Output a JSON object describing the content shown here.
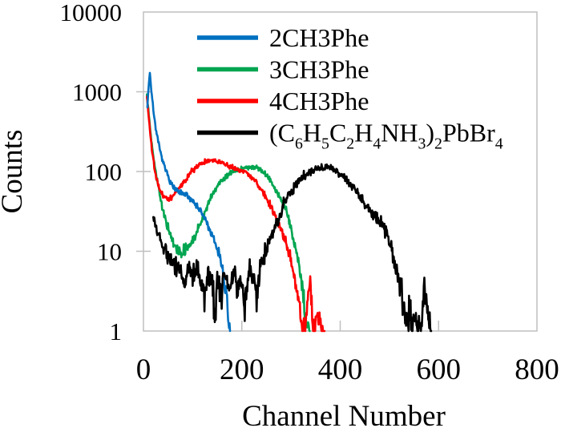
{
  "figure": {
    "background": "#FFFFFF",
    "frame_color": "#BFBFBF",
    "text_color": "#000000"
  },
  "chart_data": {
    "type": "line",
    "title": "",
    "xlabel": "Channel Number",
    "ylabel": "Counts",
    "x_axis": {
      "min": 0,
      "max": 800,
      "ticks": [
        0,
        200,
        400,
        600,
        800
      ]
    },
    "y_axis": {
      "scale": "log",
      "min": 1,
      "max": 10000,
      "ticks": [
        1,
        10,
        100,
        1000,
        10000
      ]
    },
    "grid": false,
    "legend_position": "top-center-inside",
    "series": [
      {
        "name": "3CH3Phe",
        "legend_order": 1,
        "label_segments": [
          {
            "t": "3CH3Phe"
          }
        ],
        "color": "#00A550",
        "seed": 13,
        "noise_base": 0.022,
        "noise_lowc": 0.25,
        "anchors": [
          [
            7,
            950
          ],
          [
            10,
            600
          ],
          [
            14,
            330
          ],
          [
            18,
            200
          ],
          [
            23,
            120
          ],
          [
            28,
            76
          ],
          [
            33,
            52
          ],
          [
            38,
            36
          ],
          [
            44,
            26
          ],
          [
            50,
            19
          ],
          [
            56,
            15
          ],
          [
            62,
            12
          ],
          [
            68,
            10.5
          ],
          [
            75,
            9.5
          ],
          [
            82,
            10
          ],
          [
            90,
            11
          ],
          [
            98,
            13
          ],
          [
            106,
            16
          ],
          [
            114,
            21
          ],
          [
            122,
            28
          ],
          [
            130,
            37
          ],
          [
            138,
            48
          ],
          [
            146,
            60
          ],
          [
            155,
            72
          ],
          [
            165,
            85
          ],
          [
            175,
            95
          ],
          [
            185,
            101
          ],
          [
            195,
            106
          ],
          [
            205,
            110
          ],
          [
            215,
            112
          ],
          [
            225,
            112
          ],
          [
            235,
            108
          ],
          [
            245,
            98
          ],
          [
            255,
            82
          ],
          [
            263,
            68
          ],
          [
            271,
            55
          ],
          [
            279,
            45
          ],
          [
            287,
            38
          ],
          [
            295,
            26
          ],
          [
            302,
            17
          ],
          [
            309,
            11
          ],
          [
            316,
            6.5
          ],
          [
            322,
            3.8
          ],
          [
            327,
            2.2
          ],
          [
            332,
            1.3
          ],
          [
            338,
            1
          ]
        ]
      },
      {
        "name": "4CH3Phe",
        "legend_order": 2,
        "label_segments": [
          {
            "t": "4CH3Phe"
          }
        ],
        "color": "#FF0000",
        "seed": 21,
        "noise_base": 0.022,
        "noise_lowc": 0.25,
        "anchors": [
          [
            7,
            880
          ],
          [
            10,
            540
          ],
          [
            14,
            290
          ],
          [
            18,
            170
          ],
          [
            23,
            105
          ],
          [
            28,
            76
          ],
          [
            33,
            60
          ],
          [
            38,
            52
          ],
          [
            44,
            47
          ],
          [
            50,
            45
          ],
          [
            56,
            46
          ],
          [
            62,
            50
          ],
          [
            68,
            56
          ],
          [
            75,
            64
          ],
          [
            82,
            74
          ],
          [
            90,
            87
          ],
          [
            98,
            100
          ],
          [
            106,
            113
          ],
          [
            114,
            124
          ],
          [
            122,
            131
          ],
          [
            130,
            136
          ],
          [
            138,
            138
          ],
          [
            146,
            136
          ],
          [
            154,
            132
          ],
          [
            162,
            127
          ],
          [
            170,
            121
          ],
          [
            178,
            115
          ],
          [
            186,
            109
          ],
          [
            194,
            104
          ],
          [
            202,
            100
          ],
          [
            210,
            96
          ],
          [
            218,
            88
          ],
          [
            226,
            78
          ],
          [
            234,
            66
          ],
          [
            242,
            56
          ],
          [
            250,
            46
          ],
          [
            258,
            37
          ],
          [
            266,
            29
          ],
          [
            274,
            22
          ],
          [
            282,
            17
          ],
          [
            290,
            12.5
          ],
          [
            298,
            8.5
          ],
          [
            305,
            5.5
          ],
          [
            311,
            3.2
          ],
          [
            317,
            2
          ],
          [
            323,
            1
          ],
          [
            329,
            1
          ],
          [
            334,
            2.5
          ],
          [
            339,
            4.2
          ],
          [
            344,
            1.3
          ],
          [
            349,
            1
          ],
          [
            354,
            1.7
          ],
          [
            359,
            1.1
          ],
          [
            364,
            1
          ],
          [
            368,
            1
          ]
        ]
      },
      {
        "name": "2CH3Phe",
        "legend_order": 0,
        "label_segments": [
          {
            "t": "2CH3Phe"
          }
        ],
        "color": "#0070C0",
        "seed": 7,
        "noise_base": 0.022,
        "noise_lowc": 0.25,
        "anchors": [
          [
            8,
            650
          ],
          [
            11,
            1300
          ],
          [
            13,
            1750
          ],
          [
            16,
            1050
          ],
          [
            20,
            600
          ],
          [
            25,
            350
          ],
          [
            30,
            235
          ],
          [
            35,
            168
          ],
          [
            40,
            130
          ],
          [
            45,
            104
          ],
          [
            50,
            88
          ],
          [
            55,
            74
          ],
          [
            60,
            64
          ],
          [
            66,
            58
          ],
          [
            72,
            55
          ],
          [
            80,
            52
          ],
          [
            88,
            50
          ],
          [
            95,
            46
          ],
          [
            102,
            42
          ],
          [
            110,
            36
          ],
          [
            118,
            30
          ],
          [
            126,
            25
          ],
          [
            134,
            19
          ],
          [
            142,
            14
          ],
          [
            150,
            11
          ],
          [
            158,
            7.5
          ],
          [
            164,
            4.5
          ],
          [
            169,
            2.5
          ],
          [
            172,
            1.4
          ],
          [
            176,
            1
          ]
        ]
      },
      {
        "name": "(C6H5C2H4NH3)2PbBr4",
        "legend_order": 3,
        "label_segments": [
          {
            "t": "(C"
          },
          {
            "t": "6",
            "sub": true
          },
          {
            "t": "H"
          },
          {
            "t": "5",
            "sub": true
          },
          {
            "t": "C"
          },
          {
            "t": "2",
            "sub": true
          },
          {
            "t": "H"
          },
          {
            "t": "4",
            "sub": true
          },
          {
            "t": "NH"
          },
          {
            "t": "3",
            "sub": true
          },
          {
            "t": ")"
          },
          {
            "t": "2",
            "sub": true
          },
          {
            "t": "PbBr"
          },
          {
            "t": "4",
            "sub": true
          }
        ],
        "color": "#000000",
        "seed": 5,
        "noise_base": 0.03,
        "noise_lowc": 0.45,
        "anchors": [
          [
            20,
            26
          ],
          [
            26,
            20
          ],
          [
            32,
            15
          ],
          [
            38,
            12
          ],
          [
            45,
            10
          ],
          [
            52,
            8.5
          ],
          [
            60,
            7.5
          ],
          [
            68,
            6.5
          ],
          [
            76,
            6
          ],
          [
            84,
            4
          ],
          [
            92,
            6.5
          ],
          [
            100,
            5
          ],
          [
            108,
            6
          ],
          [
            116,
            4.5
          ],
          [
            124,
            3
          ],
          [
            132,
            5.5
          ],
          [
            140,
            4
          ],
          [
            145,
            1.15
          ],
          [
            150,
            4.5
          ],
          [
            158,
            3.2
          ],
          [
            166,
            5.5
          ],
          [
            174,
            3
          ],
          [
            182,
            5
          ],
          [
            190,
            3.5
          ],
          [
            198,
            5
          ],
          [
            206,
            2
          ],
          [
            214,
            6
          ],
          [
            222,
            5
          ],
          [
            230,
            3
          ],
          [
            238,
            7
          ],
          [
            246,
            9
          ],
          [
            254,
            12
          ],
          [
            262,
            16
          ],
          [
            270,
            22
          ],
          [
            278,
            30
          ],
          [
            286,
            40
          ],
          [
            294,
            50
          ],
          [
            302,
            60
          ],
          [
            310,
            70
          ],
          [
            318,
            80
          ],
          [
            326,
            89
          ],
          [
            334,
            96
          ],
          [
            342,
            102
          ],
          [
            350,
            106
          ],
          [
            358,
            109
          ],
          [
            366,
            111
          ],
          [
            374,
            112
          ],
          [
            382,
            109
          ],
          [
            390,
            103
          ],
          [
            398,
            95
          ],
          [
            406,
            86
          ],
          [
            414,
            77
          ],
          [
            422,
            67
          ],
          [
            430,
            58
          ],
          [
            438,
            50
          ],
          [
            446,
            43
          ],
          [
            454,
            36
          ],
          [
            462,
            31
          ],
          [
            470,
            27
          ],
          [
            478,
            24
          ],
          [
            486,
            22
          ],
          [
            494,
            17
          ],
          [
            502,
            12
          ],
          [
            509,
            8
          ],
          [
            516,
            5.5
          ],
          [
            523,
            3.5
          ],
          [
            530,
            2
          ],
          [
            536,
            1
          ],
          [
            541,
            2.2
          ],
          [
            546,
            1
          ],
          [
            551,
            1.8
          ],
          [
            556,
            1
          ],
          [
            561,
            1.3
          ],
          [
            566,
            1
          ],
          [
            571,
            4.2
          ],
          [
            575,
            2.5
          ],
          [
            580,
            1.2
          ],
          [
            585,
            1
          ]
        ]
      }
    ]
  }
}
